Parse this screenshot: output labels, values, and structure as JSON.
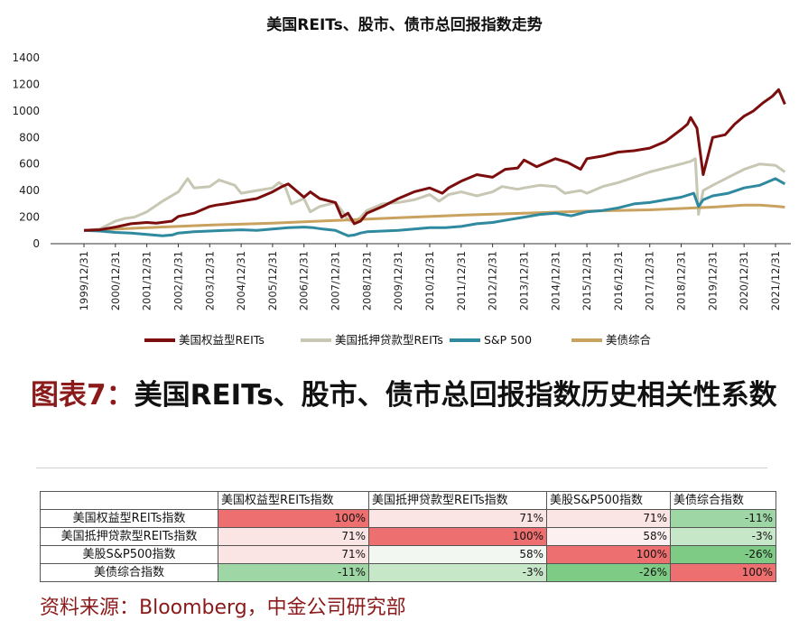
{
  "chart_data": {
    "type": "line",
    "title": "美国REITs、股市、债市总回报指数走势",
    "xlabel": "",
    "ylabel": "",
    "ylim": [
      0,
      1400
    ],
    "yticks": [
      0,
      200,
      400,
      600,
      800,
      1000,
      1200,
      1400
    ],
    "categories": [
      "1999/12/31",
      "2000/12/31",
      "2001/12/31",
      "2002/12/31",
      "2003/12/31",
      "2004/12/31",
      "2005/12/31",
      "2006/12/31",
      "2007/12/31",
      "2008/12/31",
      "2009/12/31",
      "2010/12/31",
      "2011/12/31",
      "2012/12/31",
      "2013/12/31",
      "2014/12/31",
      "2015/12/31",
      "2016/12/31",
      "2017/12/31",
      "2018/12/31",
      "2019/12/31",
      "2020/12/31",
      "2021/12/31"
    ],
    "grid": false,
    "legend_position": "bottom",
    "series": [
      {
        "name": "美国权益型REITs",
        "color": "#7b0d0d",
        "x": [
          0,
          0.5,
          1,
          1.5,
          2,
          2.3,
          2.8,
          3,
          3.5,
          4,
          4.2,
          4.5,
          5,
          5.5,
          6,
          6.3,
          6.5,
          7,
          7.2,
          7.5,
          8,
          8.2,
          8.4,
          8.6,
          8.8,
          9,
          9.5,
          10,
          10.5,
          11,
          11.4,
          11.6,
          12,
          12.5,
          13,
          13.4,
          13.8,
          14,
          14.4,
          14.8,
          15,
          15.4,
          15.8,
          16,
          16.5,
          17,
          17.5,
          18,
          18.5,
          19,
          19.2,
          19.3,
          19.5,
          19.7,
          20,
          20.4,
          20.7,
          21,
          21.3,
          21.6,
          21.9,
          22.1,
          22.3
        ],
        "y": [
          100,
          105,
          125,
          150,
          160,
          155,
          170,
          205,
          230,
          280,
          290,
          300,
          320,
          340,
          390,
          430,
          450,
          350,
          390,
          340,
          310,
          200,
          230,
          150,
          170,
          230,
          280,
          340,
          390,
          420,
          380,
          420,
          470,
          520,
          500,
          560,
          570,
          630,
          580,
          620,
          640,
          610,
          560,
          640,
          660,
          690,
          700,
          720,
          770,
          860,
          900,
          950,
          870,
          520,
          800,
          820,
          900,
          960,
          1000,
          1060,
          1110,
          1160,
          1050
        ]
      },
      {
        "name": "美国抵押贷款型REITs",
        "color": "#c8c7b4",
        "x": [
          0,
          0.5,
          1,
          1.3,
          1.6,
          2,
          2.5,
          3,
          3.3,
          3.5,
          4,
          4.3,
          4.8,
          5,
          5.5,
          6,
          6.2,
          6.4,
          6.6,
          7,
          7.2,
          7.5,
          8,
          8.2,
          8.4,
          8.6,
          8.8,
          9,
          9.5,
          10,
          10.5,
          11,
          11.3,
          11.6,
          12,
          12.5,
          13,
          13.3,
          13.8,
          14,
          14.5,
          15,
          15.3,
          15.8,
          16,
          16.5,
          17,
          17.5,
          18,
          18.5,
          19,
          19.3,
          19.45,
          19.55,
          19.7,
          20,
          20.5,
          21,
          21.5,
          22,
          22.3
        ],
        "y": [
          100,
          110,
          170,
          190,
          200,
          240,
          320,
          390,
          490,
          420,
          430,
          480,
          440,
          380,
          400,
          420,
          460,
          430,
          300,
          340,
          240,
          280,
          310,
          250,
          180,
          160,
          200,
          250,
          300,
          310,
          330,
          370,
          320,
          370,
          390,
          360,
          390,
          430,
          410,
          420,
          440,
          430,
          380,
          400,
          380,
          430,
          460,
          500,
          540,
          570,
          600,
          620,
          640,
          220,
          400,
          440,
          500,
          560,
          600,
          590,
          540
        ]
      },
      {
        "name": "S&P 500",
        "color": "#2f8aa0",
        "x": [
          0,
          0.5,
          1,
          1.5,
          2,
          2.5,
          2.8,
          3,
          3.5,
          4,
          4.5,
          5,
          5.5,
          6,
          6.5,
          7,
          7.3,
          7.6,
          8,
          8.2,
          8.4,
          8.6,
          8.8,
          9,
          9.5,
          10,
          10.5,
          11,
          11.5,
          12,
          12.5,
          13,
          13.5,
          14,
          14.5,
          15,
          15.5,
          16,
          16.5,
          17,
          17.5,
          18,
          18.5,
          19,
          19.4,
          19.55,
          19.7,
          20,
          20.5,
          21,
          21.5,
          22,
          22.3
        ],
        "y": [
          100,
          95,
          85,
          80,
          70,
          60,
          65,
          80,
          90,
          95,
          100,
          105,
          100,
          110,
          120,
          125,
          120,
          110,
          100,
          80,
          60,
          65,
          80,
          90,
          95,
          100,
          110,
          120,
          120,
          130,
          150,
          160,
          180,
          200,
          220,
          230,
          210,
          240,
          250,
          270,
          300,
          310,
          330,
          350,
          380,
          280,
          330,
          360,
          380,
          420,
          440,
          490,
          450
        ]
      },
      {
        "name": "美债综合",
        "color": "#c9a25f",
        "x": [
          0,
          2,
          4,
          6,
          8,
          10,
          12,
          14,
          16,
          18,
          19,
          20,
          21,
          21.5,
          22,
          22.3
        ],
        "y": [
          100,
          120,
          140,
          155,
          175,
          195,
          215,
          230,
          245,
          255,
          265,
          275,
          290,
          290,
          282,
          275
        ]
      }
    ]
  },
  "figure": {
    "label": "图表7：",
    "title": "美国REITs、股市、债市总回报指数历史相关性系数"
  },
  "table": {
    "headers": [
      "",
      "美国权益型REITs指数",
      "美国抵押贷款型REITs指数",
      "美股S&P500指数",
      "美债综合指数"
    ],
    "rows": [
      {
        "label": "美国权益型REITs指数",
        "values": [
          "100%",
          "71%",
          "71%",
          "-11%"
        ],
        "colors": [
          "#ee6f6f",
          "#fbe4e4",
          "#fbe4e4",
          "#9fd6a5"
        ]
      },
      {
        "label": "美国抵押贷款型REITs指数",
        "values": [
          "71%",
          "100%",
          "58%",
          "-3%"
        ],
        "colors": [
          "#fbe4e4",
          "#ee6f6f",
          "#fdf0f0",
          "#c7e7c9"
        ]
      },
      {
        "label": "美股S&P500指数",
        "values": [
          "71%",
          "58%",
          "100%",
          "-26%"
        ],
        "colors": [
          "#fbe4e4",
          "#f3f7f2",
          "#ee6f6f",
          "#7ecb86"
        ]
      },
      {
        "label": "美债综合指数",
        "values": [
          "-11%",
          "-3%",
          "-26%",
          "100%"
        ],
        "colors": [
          "#9fd6a5",
          "#c7e7c9",
          "#7ecb86",
          "#ee6f6f"
        ]
      }
    ]
  },
  "source": "资料来源：Bloomberg，中金公司研究部"
}
